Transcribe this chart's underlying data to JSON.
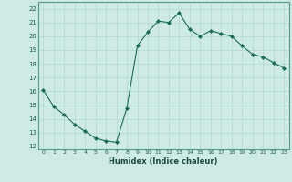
{
  "x": [
    0,
    1,
    2,
    3,
    4,
    5,
    6,
    7,
    8,
    9,
    10,
    11,
    12,
    13,
    14,
    15,
    16,
    17,
    18,
    19,
    20,
    21,
    22,
    23
  ],
  "y": [
    16.1,
    14.9,
    14.3,
    13.6,
    13.1,
    12.6,
    12.4,
    12.3,
    14.8,
    19.3,
    20.3,
    21.1,
    21.0,
    21.7,
    20.5,
    20.0,
    20.4,
    20.2,
    20.0,
    19.3,
    18.7,
    18.5,
    18.1,
    17.7
  ],
  "line_color": "#1a6b5a",
  "marker": "D",
  "marker_size": 2.0,
  "bg_color": "#ceeae4",
  "grid_color": "#b0d8d0",
  "xlabel": "Humidex (Indice chaleur)",
  "ylabel_ticks": [
    12,
    13,
    14,
    15,
    16,
    17,
    18,
    19,
    20,
    21,
    22
  ],
  "ylim": [
    11.8,
    22.5
  ],
  "xlim": [
    -0.5,
    23.5
  ],
  "xticks": [
    0,
    1,
    2,
    3,
    4,
    5,
    6,
    7,
    8,
    9,
    10,
    11,
    12,
    13,
    14,
    15,
    16,
    17,
    18,
    19,
    20,
    21,
    22,
    23
  ]
}
